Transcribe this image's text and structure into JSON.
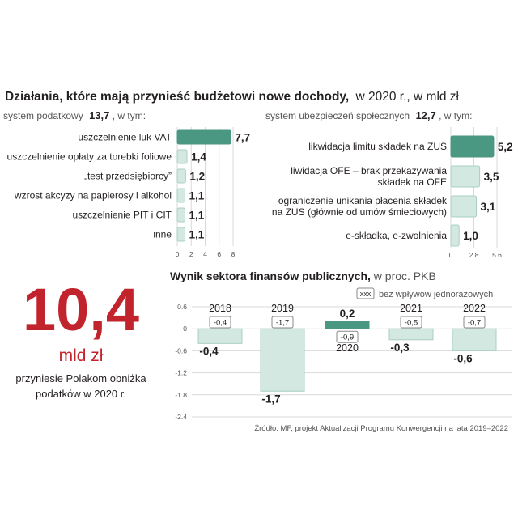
{
  "colors": {
    "dark_bar": "#4a9782",
    "light_bar": "#d3e8e0",
    "light_bar_stroke": "#a9cfc2",
    "accent_red": "#c1242c",
    "text": "#231f20",
    "muted": "#555555",
    "grid": "#d9d9d9"
  },
  "header": {
    "title": "Działania, które mają przynieść budżetowi nowe dochody,",
    "subtitle": "w 2020 r., w mld zł"
  },
  "callout": {
    "value": "10,4",
    "unit": "mld zł",
    "desc_line1": "przyniesie Polakom obniżka",
    "desc_line2": "podatków w 2020 r."
  },
  "source": "Źródło: MF, projekt Aktualizacji Programu Konwergencji na lata 2019–2022",
  "chart_data": [
    {
      "type": "bar",
      "orientation": "horizontal",
      "title": "system podatkowy",
      "title_total": "13,7",
      "title_suffix": ", w tym:",
      "categories": [
        "uszczelnienie luk VAT",
        "uszczelnienie opłaty za torebki foliowe",
        "„test przedsiębiorcy”",
        "wzrost akcyzy na papierosy i alkohol",
        "uszczelnienie PIT i CIT",
        "inne"
      ],
      "values": [
        7.7,
        1.4,
        1.2,
        1.1,
        1.1,
        1.1
      ],
      "value_labels": [
        "7,7",
        "1,4",
        "1,2",
        "1,1",
        "1,1",
        "1,1"
      ],
      "highlight_index": 0,
      "xlim": [
        0,
        8
      ],
      "xticks": [
        0,
        2,
        4,
        6,
        8
      ],
      "xtick_labels": [
        "0",
        "2",
        "4",
        "6",
        "8"
      ]
    },
    {
      "type": "bar",
      "orientation": "horizontal",
      "title": "system ubezpieczeń społecznych",
      "title_total": "12,7",
      "title_suffix": ", w tym:",
      "categories": [
        [
          "likwidacja limitu składek na ZUS"
        ],
        [
          "liwidacja OFE – brak przekazywania",
          "składek na OFE"
        ],
        [
          "ograniczenie unikania płacenia składek",
          "na ZUS (głównie od umów śmieciowych)"
        ],
        [
          "e-składka, e-zwolnienia"
        ]
      ],
      "values": [
        5.2,
        3.5,
        3.1,
        1.0
      ],
      "value_labels": [
        "5,2",
        "3,5",
        "3,1",
        "1,0"
      ],
      "highlight_index": 0,
      "xlim": [
        0,
        5.6
      ],
      "xticks": [
        0,
        2.8,
        5.6
      ],
      "xtick_labels": [
        "0",
        "2.8",
        "5.6"
      ]
    },
    {
      "type": "bar",
      "orientation": "vertical",
      "title": "Wynik sektora finansów publicznych,",
      "title_suffix": " w proc. PKB",
      "legend_box_label": "xxx",
      "legend_text": "bez wpływów jednorazowych",
      "categories": [
        "2018",
        "2019",
        "2020",
        "2021",
        "2022"
      ],
      "values": [
        -0.4,
        -1.7,
        0.2,
        -0.3,
        -0.6
      ],
      "value_labels": [
        "-0,4",
        "-1,7",
        "0,2",
        "-0,3",
        "-0,6"
      ],
      "without_one_offs": [
        -0.4,
        -1.7,
        -0.9,
        -0.5,
        -0.7
      ],
      "without_one_offs_labels": [
        "-0,4",
        "-1,7",
        "-0,9",
        "-0,5",
        "-0,7"
      ],
      "highlight_index": 2,
      "ylim": [
        -2.4,
        0.6
      ],
      "yticks": [
        0.6,
        0,
        -0.6,
        -1.2,
        -1.8,
        -2.4
      ],
      "ytick_labels": [
        "0.6",
        "0",
        "-0.6",
        "-1.2",
        "-1.8",
        "-2.4"
      ]
    }
  ]
}
